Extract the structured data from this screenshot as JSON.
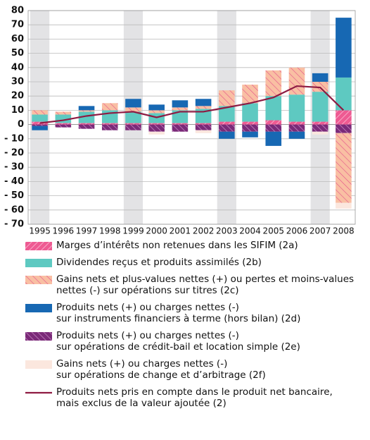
{
  "chart_data": {
    "type": "bar",
    "categories": [
      "1995",
      "1996",
      "1997",
      "1998",
      "1999",
      "2000",
      "2001",
      "2002",
      "2003",
      "2004",
      "2005",
      "2006",
      "2007",
      "2008"
    ],
    "ylim": [
      -70,
      80
    ],
    "yticks": [
      {
        "value": -70,
        "label": "- 70"
      },
      {
        "value": -60,
        "label": "- 60"
      },
      {
        "value": -50,
        "label": "- 50"
      },
      {
        "value": -40,
        "label": "- 40"
      },
      {
        "value": -30,
        "label": "- 30"
      },
      {
        "value": -20,
        "label": "- 20"
      },
      {
        "value": -10,
        "label": "- 10"
      },
      0,
      10,
      20,
      30,
      40,
      50,
      60,
      70,
      80
    ],
    "grid": true,
    "series": [
      {
        "name": "Marges d’intérêts non retenues dans les SIFIM (2a)",
        "color": "#ee5a92",
        "values": [
          2,
          1,
          1,
          1,
          1,
          1,
          1,
          1,
          2,
          2,
          3,
          2,
          2,
          10
        ]
      },
      {
        "name": "Dividendes reçus et produits assimilés (2b)",
        "color": "#5ec9c1",
        "values": [
          5,
          6,
          8,
          9,
          8,
          7,
          9,
          10,
          11,
          13,
          17,
          19,
          21,
          23
        ]
      },
      {
        "name": "Gains nets et plus-values nettes (+) ou pertes et moins-values\nnettes (-) sur opérations sur titres (2c)",
        "color": "#f9bfa3",
        "values": [
          3,
          2,
          1,
          5,
          3,
          2,
          2,
          2,
          11,
          13,
          18,
          19,
          7,
          -49
        ]
      },
      {
        "name": "Produits nets (+) ou charges nettes (-)\nsur instruments financiers à terme (hors bilan) (2d)",
        "color": "#1768b3",
        "values": [
          -3,
          0,
          3,
          0,
          6,
          4,
          5,
          5,
          -5,
          -4,
          -10,
          -5,
          6,
          42
        ]
      },
      {
        "name": "Produits nets (+) ou charges nettes (-)\nsur opérations de crédit-bail et location simple (2e)",
        "color": "#7a2a78",
        "values": [
          -1,
          -2,
          -3,
          -4,
          -4,
          -5,
          -5,
          -4,
          -5,
          -5,
          -5,
          -5,
          -5,
          -6
        ]
      },
      {
        "name": "Gains nets (+) ou charges nettes (-)\nsur opérations de change et d’arbitrage (2f)",
        "color": "#fbe7de",
        "values": [
          0,
          0,
          0,
          0,
          0,
          -2,
          0,
          -2,
          0,
          0,
          0,
          0,
          -2,
          -4
        ]
      },
      {
        "type": "line",
        "name": "Produits nets pris en compte dans le produit net bancaire,\nmais exclus de la valeur ajoutée (2)",
        "color": "#8e1b42",
        "values": [
          1,
          3,
          6,
          8,
          9,
          5,
          9,
          9,
          12,
          15,
          19,
          27,
          26,
          10
        ]
      }
    ]
  }
}
